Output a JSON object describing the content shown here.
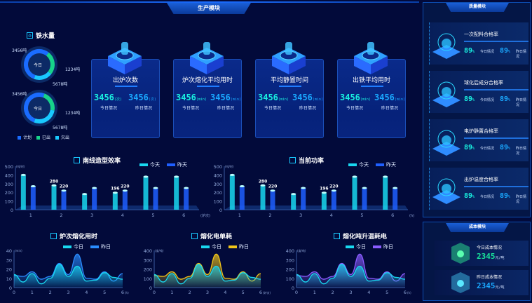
{
  "production": {
    "title": "生产模块",
    "iron": {
      "title": "铁水量",
      "icon": "person-icon",
      "donuts": [
        {
          "center": "今日",
          "top_left": "3456吨",
          "right": "1234吨",
          "bottom": "5678吨",
          "fractions": [
            0.55,
            0.25,
            0.2
          ]
        },
        {
          "center": "今日",
          "top_left": "3456吨",
          "right": "1234吨",
          "bottom": "5678吨",
          "fractions": [
            0.5,
            0.22,
            0.28
          ]
        }
      ],
      "legend": [
        {
          "label": "计划",
          "color": "#1a6cff"
        },
        {
          "label": "已出",
          "color": "#17d38a"
        },
        {
          "label": "欠出",
          "color": "#19c9ff"
        }
      ]
    },
    "cards": [
      {
        "title": "出炉次数",
        "today": "3456",
        "yesterday": "3456",
        "unit": "(次)",
        "today_label": "今日情况",
        "yesterday_label": "昨日情况"
      },
      {
        "title": "炉次熔化平均用时",
        "today": "3456",
        "yesterday": "3456",
        "unit": "(min)",
        "today_label": "今日情况",
        "yesterday_label": "昨日情况"
      },
      {
        "title": "平均静置时间",
        "today": "3456",
        "yesterday": "3456",
        "unit": "(min)",
        "today_label": "今日情况",
        "yesterday_label": "昨日情况"
      },
      {
        "title": "出铁平均用时",
        "today": "3456",
        "yesterday": "3456",
        "unit": "(min)",
        "today_label": "今日情况",
        "yesterday_label": "昨日情况"
      }
    ]
  },
  "quality": {
    "title": "质量模块",
    "items": [
      {
        "title": "一次配料合格率",
        "today": "89",
        "yesterday": "89",
        "unit": "%",
        "today_label": "今日情况",
        "yesterday_label": "昨日情况"
      },
      {
        "title": "球化后成分合格率",
        "today": "89",
        "yesterday": "89",
        "unit": "%",
        "today_label": "今日情况",
        "yesterday_label": "昨日情况"
      },
      {
        "title": "电炉静置合格率",
        "today": "89",
        "yesterday": "89",
        "unit": "%",
        "today_label": "今日情况",
        "yesterday_label": "昨日情况"
      },
      {
        "title": "出炉温度合格率",
        "today": "89",
        "yesterday": "89",
        "unit": "%",
        "today_label": "今日情况",
        "yesterday_label": "昨日情况"
      }
    ]
  },
  "cost": {
    "title": "成本模块",
    "items": [
      {
        "label": "今日成本情况",
        "value": "2345",
        "unit": "元/吨",
        "color": "#19e39a"
      },
      {
        "label": "昨日成本情况",
        "value": "2345",
        "unit": "元/吨",
        "color": "#1aa8ff"
      }
    ]
  },
  "chart_data": [
    {
      "type": "bar",
      "title": "南线造型效率",
      "ylabel": "(吨/时)",
      "xlabel": "(炉次)",
      "ylim": [
        0,
        500
      ],
      "yticks": [
        0,
        100,
        200,
        300,
        400,
        500
      ],
      "categories": [
        "1",
        "2",
        "3",
        "4",
        "5",
        "6"
      ],
      "series": [
        {
          "name": "今天",
          "color": "#19d8f0",
          "values": [
            400,
            280,
            180,
            196,
            380,
            380
          ]
        },
        {
          "name": "昨天",
          "color": "#1f5fff",
          "values": [
            270,
            220,
            250,
            220,
            250,
            250
          ]
        }
      ],
      "data_labels": {
        "1": [
          "280",
          "220"
        ],
        "3": [
          "196",
          "220"
        ]
      },
      "legend": "top-right"
    },
    {
      "type": "bar",
      "title": "当前功率",
      "ylabel": "(吨/时)",
      "xlabel": "(h)",
      "ylim": [
        0,
        500
      ],
      "yticks": [
        0,
        100,
        200,
        300,
        400,
        500
      ],
      "categories": [
        "1",
        "2",
        "3",
        "4",
        "5",
        "6"
      ],
      "series": [
        {
          "name": "今天",
          "color": "#19d8f0",
          "values": [
            400,
            280,
            180,
            196,
            380,
            380
          ]
        },
        {
          "name": "昨天",
          "color": "#1f5fff",
          "values": [
            270,
            220,
            250,
            220,
            250,
            250
          ]
        }
      ],
      "data_labels": {
        "1": [
          "280",
          "220"
        ],
        "3": [
          "196",
          "220"
        ]
      },
      "legend": "top-right"
    },
    {
      "type": "area",
      "title": "炉次熔化用时",
      "ylabel": "(min)",
      "xlabel": "(h)",
      "ylim": [
        0,
        40
      ],
      "yticks": [
        0,
        10,
        20,
        30,
        40
      ],
      "xticks": [
        0,
        1,
        2,
        3,
        4,
        5,
        6
      ],
      "x": [
        0,
        0.5,
        1,
        1.5,
        2,
        2.5,
        3,
        3.5,
        4,
        4.5,
        5,
        5.5,
        6
      ],
      "series": [
        {
          "name": "今日",
          "color": "#19d8f0",
          "values": [
            14,
            6,
            15,
            4,
            10,
            25,
            12,
            23,
            7,
            8,
            16,
            11,
            9
          ]
        },
        {
          "name": "昨日",
          "color": "#2a8cff",
          "values": [
            13,
            12,
            17,
            9,
            12,
            26,
            14,
            36,
            10,
            9,
            17,
            7,
            15
          ]
        }
      ],
      "legend": "top-right"
    },
    {
      "type": "area",
      "title": "熔化电单耗",
      "ylabel": "(度/吨)",
      "xlabel": "(炉次)",
      "ylim": [
        0,
        400
      ],
      "yticks": [
        0,
        100,
        200,
        300,
        400
      ],
      "xticks": [
        0,
        1,
        2,
        3,
        4,
        5,
        6
      ],
      "x": [
        0,
        0.5,
        1,
        1.5,
        2,
        2.5,
        3,
        3.5,
        4,
        4.5,
        5,
        5.5,
        6
      ],
      "series": [
        {
          "name": "今日",
          "color": "#19d8f0",
          "values": [
            140,
            60,
            150,
            40,
            100,
            250,
            120,
            230,
            70,
            80,
            160,
            110,
            90
          ]
        },
        {
          "name": "昨日",
          "color": "#f0c419",
          "values": [
            130,
            120,
            170,
            90,
            120,
            260,
            140,
            360,
            100,
            90,
            170,
            70,
            150
          ]
        }
      ],
      "legend": "top-right"
    },
    {
      "type": "area",
      "title": "熔化吨升温耗电",
      "ylabel": "(度/吨)",
      "xlabel": "(h)",
      "ylim": [
        0,
        400
      ],
      "yticks": [
        0,
        100,
        200,
        300,
        400
      ],
      "xticks": [
        0,
        1,
        2,
        3,
        4,
        5,
        6
      ],
      "x": [
        0,
        0.5,
        1,
        1.5,
        2,
        2.5,
        3,
        3.5,
        4,
        4.5,
        5,
        5.5,
        6
      ],
      "series": [
        {
          "name": "今日",
          "color": "#19d8f0",
          "values": [
            140,
            60,
            150,
            40,
            100,
            250,
            120,
            230,
            70,
            80,
            160,
            110,
            90
          ]
        },
        {
          "name": "昨日",
          "color": "#8a5cff",
          "values": [
            130,
            120,
            170,
            90,
            120,
            260,
            140,
            360,
            100,
            90,
            170,
            70,
            150
          ]
        }
      ],
      "legend": "top-right"
    }
  ]
}
